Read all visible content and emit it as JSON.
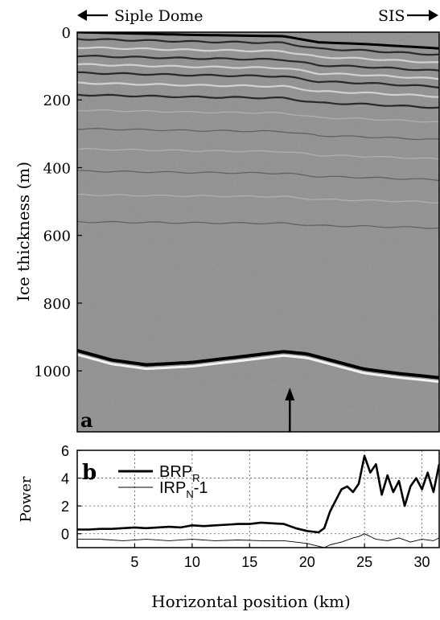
{
  "figure": {
    "top_left_label": "Siple Dome",
    "top_right_label": "SIS",
    "panel_a_label": "a",
    "panel_b_label": "b"
  },
  "chart_data": [
    {
      "type": "heatmap",
      "panel": "a",
      "ylabel": "Ice thickness (m)",
      "xlabel": "",
      "yticks": [
        0,
        200,
        400,
        600,
        800,
        1000
      ],
      "ylim": [
        0,
        1180
      ],
      "y_inverted": true,
      "xlim": [
        0,
        31.5
      ],
      "colormap": "grayscale radargram",
      "surface_depth_m": {
        "x": [
          0,
          10,
          18,
          19,
          21,
          25,
          31.5
        ],
        "y": [
          0,
          8,
          12,
          18,
          30,
          35,
          48
        ]
      },
      "bed_depth_m": {
        "x": [
          0,
          3,
          6,
          10,
          15,
          18,
          20,
          22,
          25,
          28,
          31.5
        ],
        "y": [
          940,
          968,
          982,
          975,
          955,
          943,
          950,
          968,
          995,
          1008,
          1020
        ]
      },
      "internal_layer_depths_m": [
        20,
        45,
        70,
        95,
        120,
        150,
        185,
        230,
        285,
        345,
        410,
        480,
        560
      ],
      "annotation": {
        "type": "arrow",
        "x": 18.5,
        "direction": "up"
      }
    },
    {
      "type": "line",
      "panel": "b",
      "xlabel": "Horizontal position (km)",
      "ylabel": "Power",
      "xlim": [
        0,
        31.5
      ],
      "ylim": [
        -1,
        6
      ],
      "xticks": [
        5,
        10,
        15,
        20,
        25,
        30
      ],
      "yticks": [
        0,
        2,
        4,
        6
      ],
      "grid": true,
      "legend_position": "top-left",
      "series": [
        {
          "name": "BRP",
          "name_sub": "R",
          "style": "thick",
          "x": [
            0,
            1,
            2,
            3,
            4,
            5,
            6,
            7,
            8,
            9,
            10,
            11,
            12,
            13,
            14,
            15,
            16,
            17,
            18,
            19,
            20,
            21,
            21.5,
            22,
            22.5,
            23,
            23.5,
            24,
            24.5,
            25,
            25.5,
            26,
            26.5,
            27,
            27.5,
            28,
            28.5,
            29,
            29.5,
            30,
            30.5,
            31,
            31.5
          ],
          "values": [
            0.3,
            0.3,
            0.35,
            0.35,
            0.4,
            0.45,
            0.4,
            0.45,
            0.5,
            0.45,
            0.6,
            0.55,
            0.6,
            0.65,
            0.7,
            0.7,
            0.8,
            0.75,
            0.7,
            0.4,
            0.2,
            0.1,
            0.4,
            1.6,
            2.4,
            3.2,
            3.4,
            3.0,
            3.6,
            5.6,
            4.4,
            5.0,
            2.8,
            4.2,
            3.0,
            3.8,
            2.0,
            3.4,
            4.0,
            3.2,
            4.4,
            3.0,
            5.0
          ]
        },
        {
          "name": "IRP",
          "name_sub": "N",
          "name_suffix": "-1",
          "style": "thin",
          "x": [
            0,
            2,
            4,
            6,
            8,
            10,
            12,
            14,
            16,
            18,
            19,
            20,
            21,
            21.5,
            22,
            23,
            24,
            24.5,
            25,
            26,
            27,
            28,
            29,
            30,
            31,
            31.5
          ],
          "values": [
            -0.4,
            -0.4,
            -0.5,
            -0.4,
            -0.5,
            -0.4,
            -0.5,
            -0.45,
            -0.5,
            -0.5,
            -0.6,
            -0.7,
            -0.9,
            -1.0,
            -0.8,
            -0.6,
            -0.3,
            -0.2,
            0.0,
            -0.4,
            -0.5,
            -0.3,
            -0.6,
            -0.4,
            -0.5,
            -0.3
          ]
        }
      ]
    }
  ]
}
